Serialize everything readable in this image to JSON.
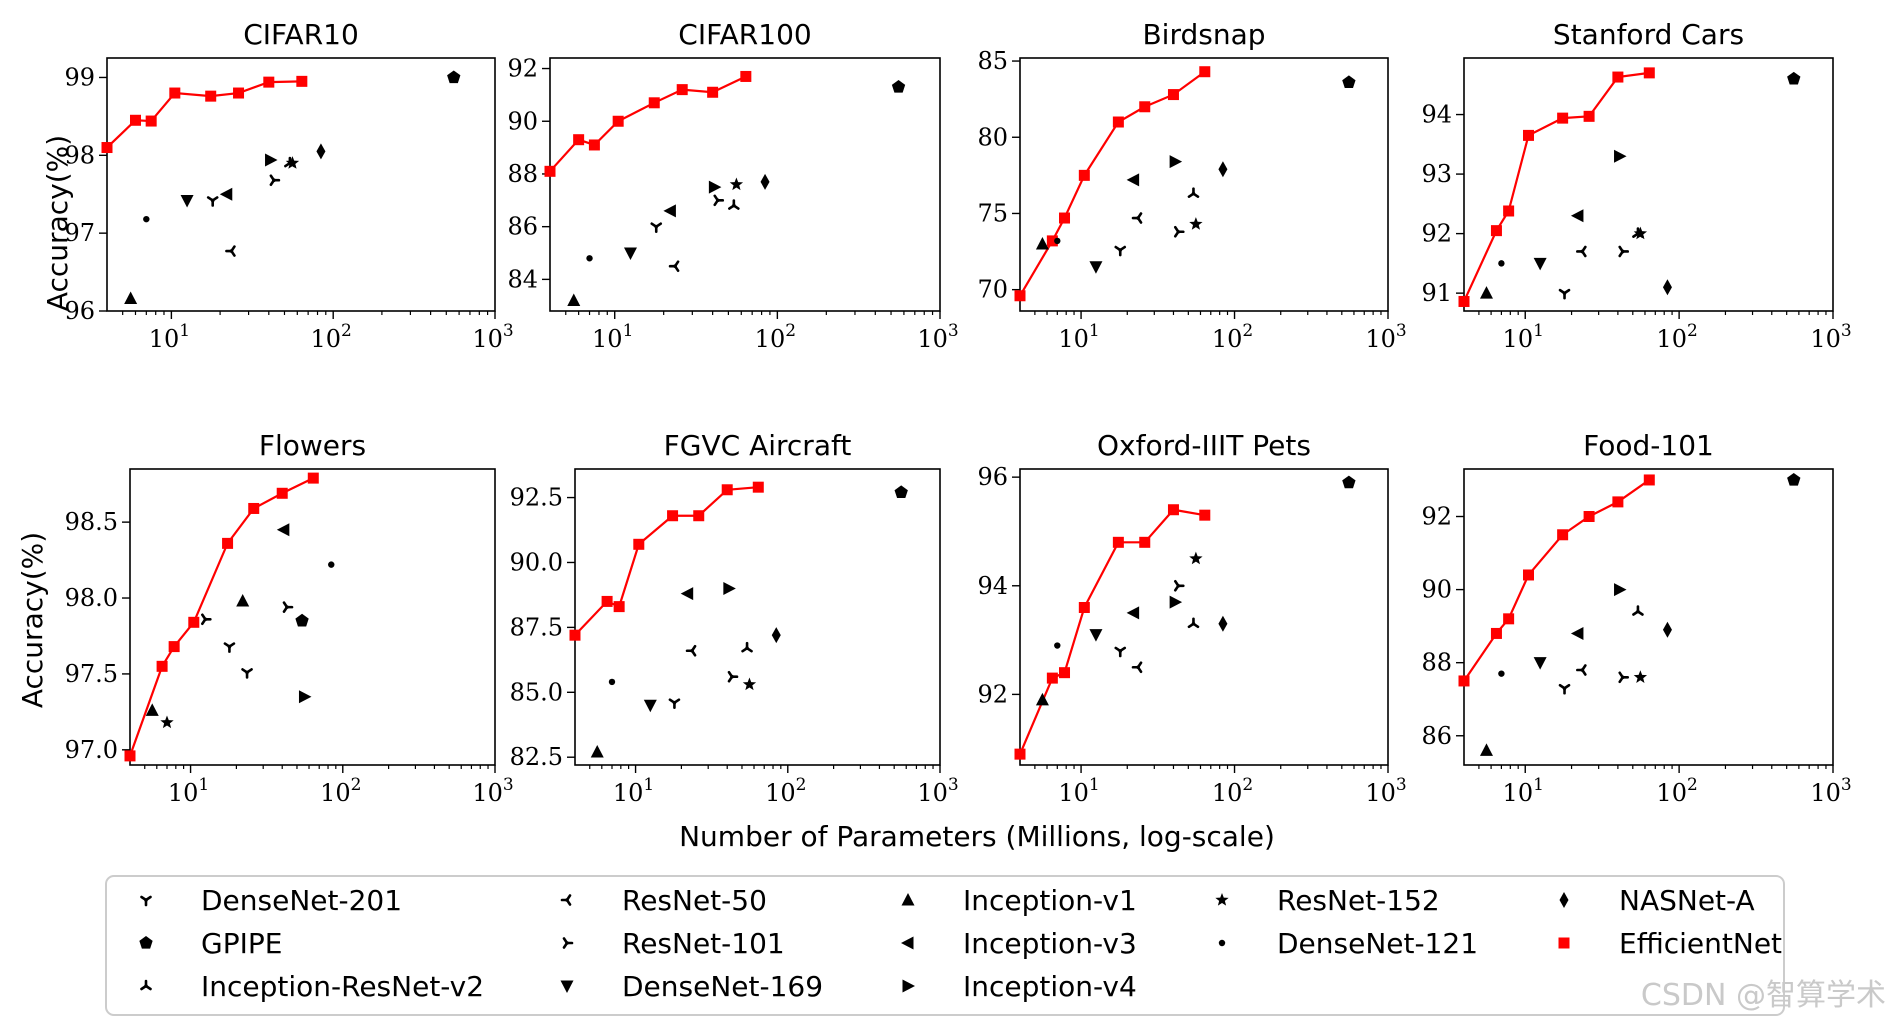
{
  "figure": {
    "xlabel": "Number of Parameters (Millions, log-scale)",
    "ylabel": "Accuracy(%)",
    "watermark": "CSDN @智算学术",
    "x_ticks": [
      {
        "value": 10,
        "base": "10",
        "exp": "1"
      },
      {
        "value": 100,
        "base": "10",
        "exp": "2"
      },
      {
        "value": 1000,
        "base": "10",
        "exp": "3"
      }
    ],
    "colors": {
      "efficientnet": "#ff0000",
      "baseline": "#000000",
      "legend_border": "#cccccc"
    }
  },
  "legend": [
    {
      "key": "densenet201",
      "label": "DenseNet-201",
      "marker": "tri_down_small"
    },
    {
      "key": "gpipe",
      "label": "GPIPE",
      "marker": "pentagon"
    },
    {
      "key": "incresv2",
      "label": "Inception-ResNet-v2",
      "marker": "tri_up_small"
    },
    {
      "key": "resnet50",
      "label": "ResNet-50",
      "marker": "tri_left_small"
    },
    {
      "key": "resnet101",
      "label": "ResNet-101",
      "marker": "tri_right_small"
    },
    {
      "key": "densenet169",
      "label": "DenseNet-169",
      "marker": "triangle_down"
    },
    {
      "key": "incv1",
      "label": "Inception-v1",
      "marker": "triangle_up"
    },
    {
      "key": "incv3",
      "label": "Inception-v3",
      "marker": "triangle_left"
    },
    {
      "key": "incv4",
      "label": "Inception-v4",
      "marker": "triangle_right"
    },
    {
      "key": "resnet152",
      "label": "ResNet-152",
      "marker": "star"
    },
    {
      "key": "densenet121",
      "label": "DenseNet-121",
      "marker": "point"
    },
    {
      "key": "nasnet",
      "label": "NASNet-A",
      "marker": "thin_diamond"
    },
    {
      "key": "efficientnet",
      "label": "EfficientNet",
      "marker": "square"
    }
  ],
  "chart_data": [
    {
      "type": "scatter",
      "title": "CIFAR10",
      "xscale": "log",
      "xlim": [
        4,
        1000
      ],
      "ylim": [
        96,
        99.25
      ],
      "yticks": [
        "96",
        "97",
        "98",
        "99"
      ],
      "efficientnet": {
        "x": [
          4,
          6,
          7.5,
          10.5,
          17.5,
          26,
          40,
          64
        ],
        "y": [
          98.1,
          98.45,
          98.44,
          98.8,
          98.76,
          98.8,
          98.94,
          98.95
        ]
      },
      "points": [
        {
          "series": "incv1",
          "x": 5.6,
          "y": 96.16
        },
        {
          "series": "densenet121",
          "x": 7.0,
          "y": 97.18
        },
        {
          "series": "densenet169",
          "x": 12.5,
          "y": 97.42
        },
        {
          "series": "densenet201",
          "x": 18,
          "y": 97.42
        },
        {
          "series": "incv3",
          "x": 22,
          "y": 97.5
        },
        {
          "series": "resnet50",
          "x": 23.5,
          "y": 96.77
        },
        {
          "series": "incv4",
          "x": 41,
          "y": 97.94
        },
        {
          "series": "resnet101",
          "x": 43,
          "y": 97.68
        },
        {
          "series": "incresv2",
          "x": 54,
          "y": 97.9
        },
        {
          "series": "resnet152",
          "x": 56,
          "y": 97.9
        },
        {
          "series": "nasnet",
          "x": 84,
          "y": 98.05
        },
        {
          "series": "gpipe",
          "x": 556,
          "y": 99.0
        }
      ]
    },
    {
      "type": "scatter",
      "title": "CIFAR100",
      "xscale": "log",
      "xlim": [
        4,
        1000
      ],
      "ylim": [
        82.8,
        92.4
      ],
      "yticks": [
        "84",
        "86",
        "88",
        "90",
        "92"
      ],
      "efficientnet": {
        "x": [
          4,
          6,
          7.5,
          10.5,
          17.5,
          26,
          40,
          64
        ],
        "y": [
          88.1,
          89.3,
          89.1,
          90.0,
          90.7,
          91.2,
          91.1,
          91.7
        ]
      },
      "points": [
        {
          "series": "incv1",
          "x": 5.6,
          "y": 83.2
        },
        {
          "series": "densenet121",
          "x": 7.0,
          "y": 84.8
        },
        {
          "series": "densenet169",
          "x": 12.5,
          "y": 85.0
        },
        {
          "series": "densenet201",
          "x": 18,
          "y": 86.0
        },
        {
          "series": "incv3",
          "x": 22,
          "y": 86.6
        },
        {
          "series": "resnet50",
          "x": 23.5,
          "y": 84.5
        },
        {
          "series": "incv4",
          "x": 41,
          "y": 87.5
        },
        {
          "series": "resnet101",
          "x": 43,
          "y": 87.0
        },
        {
          "series": "incresv2",
          "x": 54,
          "y": 86.8
        },
        {
          "series": "resnet152",
          "x": 56,
          "y": 87.6
        },
        {
          "series": "nasnet",
          "x": 84,
          "y": 87.7
        },
        {
          "series": "gpipe",
          "x": 556,
          "y": 91.3
        }
      ]
    },
    {
      "type": "scatter",
      "title": "Birdsnap",
      "xscale": "log",
      "xlim": [
        4,
        1000
      ],
      "ylim": [
        68.6,
        85.2
      ],
      "yticks": [
        "70",
        "75",
        "80",
        "85"
      ],
      "efficientnet": {
        "x": [
          4,
          6.5,
          7.8,
          10.5,
          17.5,
          26,
          40,
          64
        ],
        "y": [
          69.6,
          73.2,
          74.7,
          77.5,
          81.0,
          82.0,
          82.8,
          84.3
        ]
      },
      "points": [
        {
          "series": "incv1",
          "x": 5.6,
          "y": 73.0
        },
        {
          "series": "densenet121",
          "x": 7.0,
          "y": 73.2
        },
        {
          "series": "densenet169",
          "x": 12.5,
          "y": 71.5
        },
        {
          "series": "densenet201",
          "x": 18,
          "y": 72.6
        },
        {
          "series": "incv3",
          "x": 22,
          "y": 77.2
        },
        {
          "series": "resnet50",
          "x": 23.5,
          "y": 74.7
        },
        {
          "series": "incv4",
          "x": 41,
          "y": 78.4
        },
        {
          "series": "resnet101",
          "x": 43,
          "y": 73.8
        },
        {
          "series": "incresv2",
          "x": 54,
          "y": 76.3
        },
        {
          "series": "resnet152",
          "x": 56,
          "y": 74.3
        },
        {
          "series": "nasnet",
          "x": 84,
          "y": 77.9
        },
        {
          "series": "gpipe",
          "x": 556,
          "y": 83.6
        }
      ]
    },
    {
      "type": "scatter",
      "title": "Stanford Cars",
      "xscale": "log",
      "xlim": [
        4,
        1000
      ],
      "ylim": [
        90.7,
        94.95
      ],
      "yticks": [
        "91",
        "92",
        "93",
        "94"
      ],
      "efficientnet": {
        "x": [
          4,
          6.5,
          7.8,
          10.5,
          17.5,
          26,
          40,
          64
        ],
        "y": [
          90.86,
          92.05,
          92.38,
          93.65,
          93.94,
          93.97,
          94.63,
          94.7
        ]
      },
      "points": [
        {
          "series": "incv1",
          "x": 5.6,
          "y": 91.0
        },
        {
          "series": "densenet121",
          "x": 7.0,
          "y": 91.5
        },
        {
          "series": "densenet169",
          "x": 12.5,
          "y": 91.5
        },
        {
          "series": "densenet201",
          "x": 18,
          "y": 91.0
        },
        {
          "series": "incv3",
          "x": 22,
          "y": 92.3
        },
        {
          "series": "resnet50",
          "x": 23.5,
          "y": 91.7
        },
        {
          "series": "incv4",
          "x": 41,
          "y": 93.3
        },
        {
          "series": "resnet101",
          "x": 43,
          "y": 91.7
        },
        {
          "series": "incresv2",
          "x": 54,
          "y": 92.0
        },
        {
          "series": "resnet152",
          "x": 56,
          "y": 92.0
        },
        {
          "series": "nasnet",
          "x": 84,
          "y": 91.1
        },
        {
          "series": "gpipe",
          "x": 556,
          "y": 94.6
        }
      ]
    },
    {
      "type": "scatter",
      "title": "Flowers",
      "xscale": "log",
      "xlim": [
        4,
        1000
      ],
      "ylim": [
        96.9,
        98.85
      ],
      "yticks": [
        "97.0",
        "97.5",
        "98.0",
        "98.5"
      ],
      "efficientnet": {
        "x": [
          4,
          6.5,
          7.8,
          10.5,
          17.5,
          26,
          40,
          64
        ],
        "y": [
          96.96,
          97.55,
          97.68,
          97.84,
          98.36,
          98.59,
          98.69,
          98.79
        ]
      },
      "points": [
        {
          "series": "incv1",
          "x": 5.6,
          "y": 97.26
        },
        {
          "series": "resnet152",
          "x": 7.0,
          "y": 97.18
        },
        {
          "series": "resnet101",
          "x": 12.5,
          "y": 97.86
        },
        {
          "series": "densenet201",
          "x": 18,
          "y": 97.68
        },
        {
          "series": "incv1",
          "x": 22,
          "y": 97.98
        },
        {
          "series": "densenet201",
          "x": 23.5,
          "y": 97.51
        },
        {
          "series": "incv3",
          "x": 41,
          "y": 98.45
        },
        {
          "series": "resnet101",
          "x": 43,
          "y": 97.94
        },
        {
          "series": "gpipe",
          "x": 54,
          "y": 97.85
        },
        {
          "series": "incv4",
          "x": 56,
          "y": 97.35
        },
        {
          "series": "densenet121",
          "x": 84,
          "y": 98.22
        }
      ]
    },
    {
      "type": "scatter",
      "title": "FGVC Aircraft",
      "xscale": "log",
      "xlim": [
        4,
        1000
      ],
      "ylim": [
        82.2,
        93.6
      ],
      "yticks": [
        "82.5",
        "85.0",
        "87.5",
        "90.0",
        "92.5"
      ],
      "efficientnet": {
        "x": [
          4,
          6.5,
          7.8,
          10.5,
          17.5,
          26,
          40,
          64
        ],
        "y": [
          87.2,
          88.5,
          88.3,
          90.7,
          91.8,
          91.8,
          92.8,
          92.9
        ]
      },
      "points": [
        {
          "series": "incv1",
          "x": 5.6,
          "y": 82.7
        },
        {
          "series": "densenet121",
          "x": 7.0,
          "y": 85.4
        },
        {
          "series": "densenet169",
          "x": 12.5,
          "y": 84.5
        },
        {
          "series": "densenet201",
          "x": 18,
          "y": 84.6
        },
        {
          "series": "incv3",
          "x": 22,
          "y": 88.8
        },
        {
          "series": "resnet50",
          "x": 23.5,
          "y": 86.6
        },
        {
          "series": "incv4",
          "x": 41,
          "y": 89.0
        },
        {
          "series": "resnet101",
          "x": 43,
          "y": 85.6
        },
        {
          "series": "incresv2",
          "x": 54,
          "y": 86.7
        },
        {
          "series": "resnet152",
          "x": 56,
          "y": 85.3
        },
        {
          "series": "nasnet",
          "x": 84,
          "y": 87.2
        },
        {
          "series": "gpipe",
          "x": 556,
          "y": 92.7
        }
      ]
    },
    {
      "type": "scatter",
      "title": "Oxford-IIIT Pets",
      "xscale": "log",
      "xlim": [
        4,
        1000
      ],
      "ylim": [
        90.7,
        96.15
      ],
      "yticks": [
        "92",
        "94",
        "96"
      ],
      "efficientnet": {
        "x": [
          4,
          6.5,
          7.8,
          10.5,
          17.5,
          26,
          40,
          64
        ],
        "y": [
          90.9,
          92.3,
          92.4,
          93.6,
          94.8,
          94.8,
          95.4,
          95.3
        ]
      },
      "points": [
        {
          "series": "incv1",
          "x": 5.6,
          "y": 91.9
        },
        {
          "series": "densenet121",
          "x": 7.0,
          "y": 92.9
        },
        {
          "series": "densenet169",
          "x": 12.5,
          "y": 93.1
        },
        {
          "series": "densenet201",
          "x": 18,
          "y": 92.8
        },
        {
          "series": "incv3",
          "x": 22,
          "y": 93.5
        },
        {
          "series": "resnet50",
          "x": 23.5,
          "y": 92.5
        },
        {
          "series": "incv4",
          "x": 41,
          "y": 93.7
        },
        {
          "series": "resnet101",
          "x": 43,
          "y": 94.0
        },
        {
          "series": "incresv2",
          "x": 54,
          "y": 93.3
        },
        {
          "series": "resnet152",
          "x": 56,
          "y": 94.5
        },
        {
          "series": "nasnet",
          "x": 84,
          "y": 93.3
        },
        {
          "series": "gpipe",
          "x": 556,
          "y": 95.9
        }
      ]
    },
    {
      "type": "scatter",
      "title": "Food-101",
      "xscale": "log",
      "xlim": [
        4,
        1000
      ],
      "ylim": [
        85.2,
        93.3
      ],
      "yticks": [
        "86",
        "88",
        "90",
        "92"
      ],
      "efficientnet": {
        "x": [
          4,
          6.5,
          7.8,
          10.5,
          17.5,
          26,
          40,
          64
        ],
        "y": [
          87.5,
          88.8,
          89.2,
          90.4,
          91.5,
          92.0,
          92.4,
          93.0
        ]
      },
      "points": [
        {
          "series": "incv1",
          "x": 5.6,
          "y": 85.6
        },
        {
          "series": "densenet121",
          "x": 7.0,
          "y": 87.7
        },
        {
          "series": "densenet169",
          "x": 12.5,
          "y": 88.0
        },
        {
          "series": "densenet201",
          "x": 18,
          "y": 87.3
        },
        {
          "series": "incv3",
          "x": 22,
          "y": 88.8
        },
        {
          "series": "resnet50",
          "x": 23.5,
          "y": 87.8
        },
        {
          "series": "incv4",
          "x": 41,
          "y": 90.0
        },
        {
          "series": "resnet101",
          "x": 43,
          "y": 87.6
        },
        {
          "series": "incresv2",
          "x": 54,
          "y": 89.4
        },
        {
          "series": "resnet152",
          "x": 56,
          "y": 87.6
        },
        {
          "series": "nasnet",
          "x": 84,
          "y": 88.9
        },
        {
          "series": "gpipe",
          "x": 556,
          "y": 93.0
        }
      ]
    }
  ]
}
